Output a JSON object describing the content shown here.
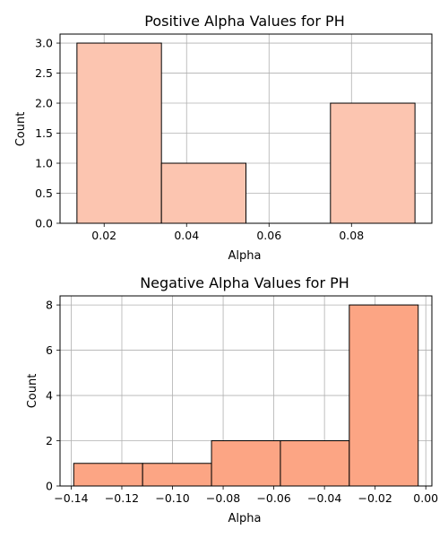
{
  "chart_data": [
    {
      "type": "histogram",
      "title": "Positive Alpha Values for PH",
      "xlabel": "Alpha",
      "ylabel": "Count",
      "bins": [
        {
          "start": 0.0134,
          "end": 0.0339,
          "count": 3
        },
        {
          "start": 0.0339,
          "end": 0.0544,
          "count": 1
        },
        {
          "start": 0.0544,
          "end": 0.0749,
          "count": 0
        },
        {
          "start": 0.0749,
          "end": 0.0954,
          "count": 2
        }
      ],
      "xlim": [
        0.0093,
        0.0995
      ],
      "ylim": [
        0,
        3.15
      ],
      "xticks": [
        0.02,
        0.04,
        0.06,
        0.08
      ],
      "xtick_labels": [
        "0.02",
        "0.04",
        "0.06",
        "0.08"
      ],
      "yticks": [
        0,
        0.5,
        1,
        1.5,
        2,
        2.5,
        3
      ],
      "ytick_labels": [
        "0.0",
        "0.5",
        "1.0",
        "1.5",
        "2.0",
        "2.5",
        "3.0"
      ],
      "grid": true,
      "bar_color": "#fcc5b0",
      "edge_color": "#000000"
    },
    {
      "type": "histogram",
      "title": "Negative Alpha Values for PH",
      "xlabel": "Alpha",
      "ylabel": "Count",
      "bins": [
        {
          "start": -0.139,
          "end": -0.1118,
          "count": 1
        },
        {
          "start": -0.1118,
          "end": -0.0846,
          "count": 1
        },
        {
          "start": -0.0846,
          "end": -0.0574,
          "count": 2
        },
        {
          "start": -0.0574,
          "end": -0.0302,
          "count": 2
        },
        {
          "start": -0.0302,
          "end": -0.003,
          "count": 8
        }
      ],
      "xlim": [
        -0.1444,
        0.0024
      ],
      "ylim": [
        0,
        8.4
      ],
      "xticks": [
        -0.14,
        -0.12,
        -0.1,
        -0.08,
        -0.06,
        -0.04,
        -0.02,
        0.0
      ],
      "xtick_labels": [
        "−0.14",
        "−0.12",
        "−0.10",
        "−0.08",
        "−0.06",
        "−0.04",
        "−0.02",
        "0.00"
      ],
      "yticks": [
        0,
        2,
        4,
        6,
        8
      ],
      "ytick_labels": [
        "0",
        "2",
        "4",
        "6",
        "8"
      ],
      "grid": true,
      "bar_color": "#fca584",
      "edge_color": "#000000"
    }
  ]
}
